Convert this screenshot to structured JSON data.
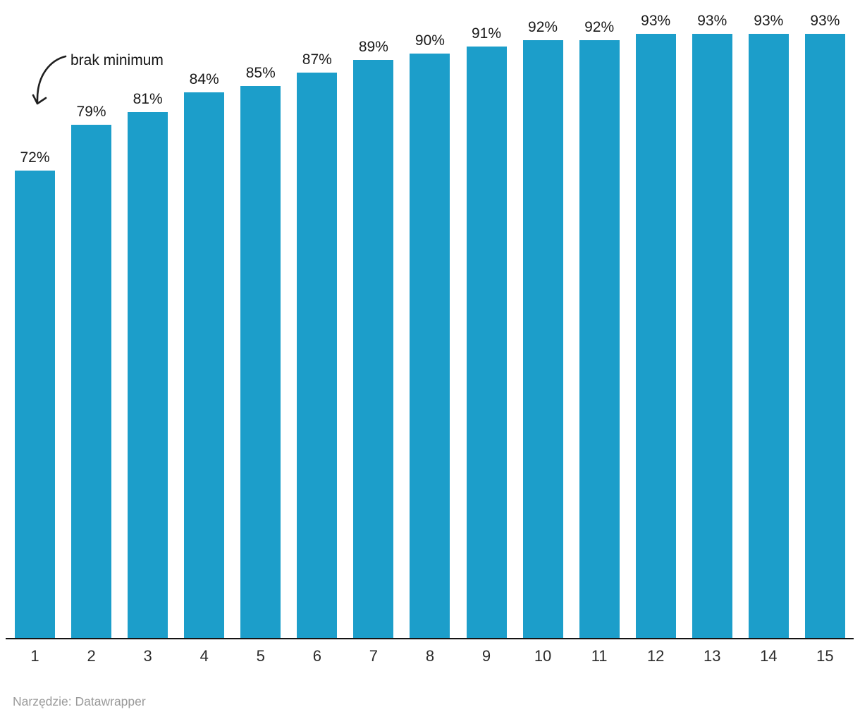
{
  "chart_data": {
    "type": "bar",
    "title": "",
    "xlabel": "",
    "ylabel": "",
    "categories": [
      "1",
      "2",
      "3",
      "4",
      "5",
      "6",
      "7",
      "8",
      "9",
      "10",
      "11",
      "12",
      "13",
      "14",
      "15"
    ],
    "values": [
      72,
      79,
      81,
      84,
      85,
      87,
      89,
      90,
      91,
      92,
      92,
      93,
      93,
      93,
      93
    ],
    "value_labels": [
      "72%",
      "79%",
      "81%",
      "84%",
      "85%",
      "87%",
      "89%",
      "90%",
      "91%",
      "92%",
      "92%",
      "93%",
      "93%",
      "93%",
      "93%"
    ],
    "ylim": [
      0,
      93
    ],
    "grid": false,
    "legend": false,
    "bar_color": "#1C9ECA",
    "annotations": [
      {
        "text": "brak minimum",
        "target_category": "1"
      }
    ]
  },
  "annotation": {
    "text": "brak minimum"
  },
  "colors": {
    "bar": "#1C9ECA",
    "label_text": "#1a1a1a",
    "axis_line": "#141414",
    "footer_text": "#9a9a9a"
  },
  "footer": {
    "text": "Narzędzie: Datawrapper"
  }
}
